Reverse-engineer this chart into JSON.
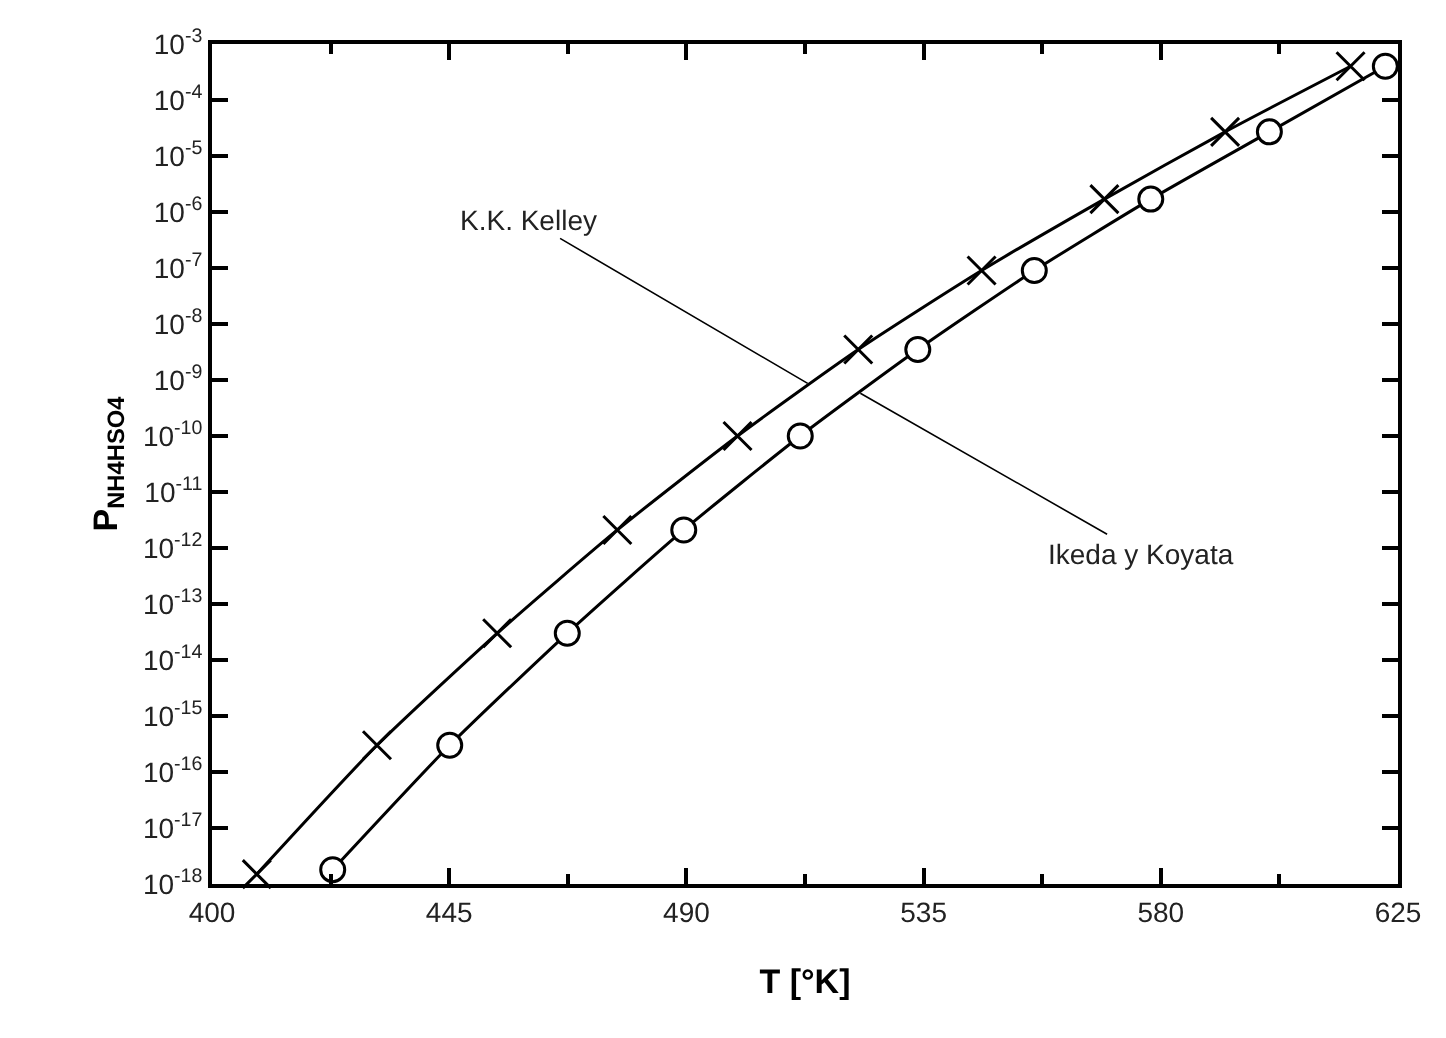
{
  "chart_data": {
    "type": "line",
    "xlabel": "T [°K]",
    "ylabel": "P$_{NH4HSO4}$",
    "log": "y",
    "xlim": [
      400,
      625
    ],
    "xticks": [
      400,
      {
        "value": 422.5,
        "label": null
      },
      445,
      {
        "value": 467.5,
        "label": null
      },
      490,
      {
        "value": 512.5,
        "label": null
      },
      535,
      {
        "value": 557.5,
        "label": null
      },
      580,
      {
        "value": 602.5,
        "label": null
      },
      625
    ],
    "ylim": [
      1e-18,
      0.001
    ],
    "yticks": [
      {
        "value": 1e-18,
        "label": "10$^{-18}$"
      },
      {
        "value": 1e-17,
        "label": "10$^{-17}$"
      },
      {
        "value": 1e-16,
        "label": "10$^{-16}$"
      },
      {
        "value": 1e-15,
        "label": "10$^{-15}$"
      },
      {
        "value": 1e-14,
        "label": "10$^{-14}$"
      },
      {
        "value": 1e-13,
        "label": "10$^{-13}$"
      },
      {
        "value": 1e-12,
        "label": "10$^{-12}$"
      },
      {
        "value": 1e-11,
        "label": "10$^{-11}$"
      },
      {
        "value": 1e-10,
        "label": "10$^{-10}$"
      },
      {
        "value": 1e-09,
        "label": "10$^{-9}$"
      },
      {
        "value": 1e-08,
        "label": "10$^{-8}$"
      },
      {
        "value": 1e-07,
        "label": "10$^{-7}$"
      },
      {
        "value": 1e-06,
        "label": "10$^{-6}$"
      },
      {
        "value": 1e-05,
        "label": "10$^{-5}$"
      },
      {
        "value": 0.0001,
        "label": "10$^{-4}$"
      },
      {
        "value": 0.001,
        "label": "10$^{-3}$"
      }
    ],
    "series": [
      {
        "color": "#000000",
        "marker": "cross",
        "x": [
          408.5,
          431.3,
          454.1,
          476.9,
          499.7,
          522.6,
          546,
          569.3,
          592.2,
          616
        ],
        "values": [
          1.5e-18,
          3e-16,
          3e-14,
          2.1e-12,
          1e-10,
          3.5e-09,
          9e-08,
          1.7e-06,
          2.7e-05,
          0.0004
        ]
      },
      {
        "color": "#000000",
        "marker": "circle",
        "x": [
          422.9,
          445.1,
          467.4,
          489.5,
          511.6,
          533.9,
          556,
          578.1,
          600.6,
          622.6
        ],
        "values": [
          1.8e-18,
          3e-16,
          3e-14,
          2.1e-12,
          1e-10,
          3.5e-09,
          9e-08,
          1.7e-06,
          2.7e-05,
          0.0004
        ]
      }
    ],
    "annotations": [
      {
        "text": "K.K. Kelley",
        "x": 513,
        "y": 8.7e-10
      },
      {
        "text": "Ikeda y Koyata",
        "x": 523,
        "y": 5.8e-10
      }
    ]
  }
}
